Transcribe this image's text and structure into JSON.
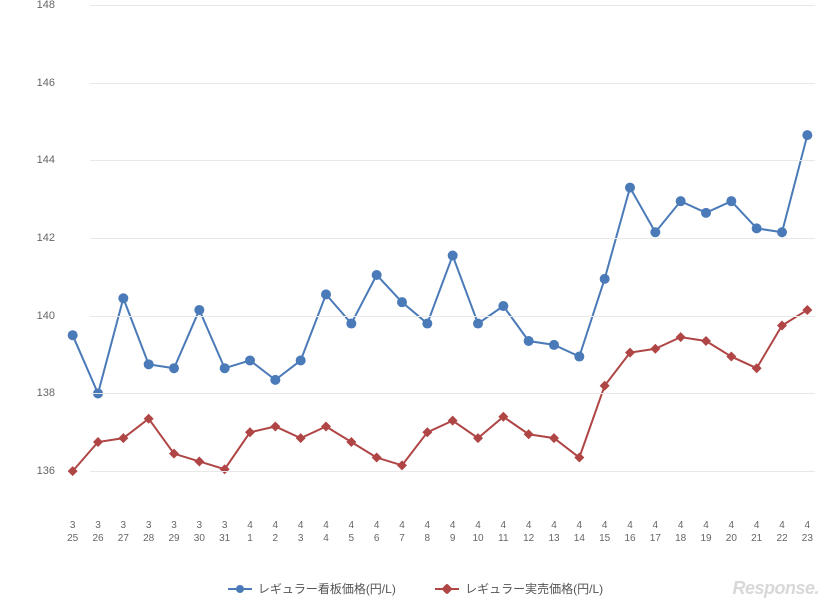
{
  "chart": {
    "type": "line",
    "background_color": "#ffffff",
    "grid_color": "#e8e8e8",
    "text_color": "#666666",
    "ylim": [
      135,
      148
    ],
    "ytick_step": 2,
    "yticks": [
      136,
      138,
      140,
      142,
      144,
      146,
      148
    ],
    "y_fontsize": 11,
    "x_fontsize": 10,
    "x_labels_top": [
      "3",
      "3",
      "3",
      "3",
      "3",
      "3",
      "3",
      "4",
      "4",
      "4",
      "4",
      "4",
      "4",
      "4",
      "4",
      "4",
      "4",
      "4",
      "4",
      "4",
      "4",
      "4",
      "4",
      "4",
      "4",
      "4",
      "4",
      "4",
      "4",
      "4"
    ],
    "x_labels_bottom": [
      "25",
      "26",
      "27",
      "28",
      "29",
      "30",
      "31",
      "1",
      "2",
      "3",
      "4",
      "5",
      "6",
      "7",
      "8",
      "9",
      "10",
      "11",
      "12",
      "13",
      "14",
      "15",
      "16",
      "17",
      "18",
      "19",
      "20",
      "21",
      "22",
      "23"
    ],
    "series": [
      {
        "name": "レギュラー看板価格(円/L)",
        "color": "#4a7ab8",
        "line_width": 2,
        "marker": "circle",
        "marker_size": 5,
        "values": [
          139.5,
          138.0,
          140.45,
          138.75,
          138.65,
          140.15,
          138.65,
          138.85,
          138.35,
          138.85,
          140.55,
          139.8,
          141.05,
          140.35,
          139.8,
          141.55,
          139.8,
          140.25,
          139.35,
          139.25,
          138.95,
          140.95,
          143.3,
          142.15,
          142.95,
          142.65,
          142.95,
          142.25,
          142.15,
          144.65
        ]
      },
      {
        "name": "レギュラー実売価格(円/L)",
        "color": "#b04545",
        "line_width": 2,
        "marker": "diamond",
        "marker_size": 5,
        "values": [
          136.0,
          136.75,
          136.85,
          137.35,
          136.45,
          136.25,
          136.05,
          137.0,
          137.15,
          136.85,
          137.15,
          136.75,
          136.35,
          136.15,
          137.0,
          137.3,
          136.85,
          137.4,
          136.95,
          136.85,
          136.35,
          138.2,
          139.05,
          139.15,
          139.45,
          139.35,
          138.95,
          138.65,
          139.75,
          140.15
        ]
      }
    ]
  },
  "legend": {
    "items": [
      {
        "label": "レギュラー看板価格(円/L)",
        "color": "#4a7ab8",
        "marker": "circle"
      },
      {
        "label": "レギュラー実売価格(円/L)",
        "color": "#b04545",
        "marker": "diamond"
      }
    ],
    "fontsize": 12
  },
  "watermark": {
    "text": "Response.",
    "color": "#d8d8d8",
    "fontsize": 18
  }
}
